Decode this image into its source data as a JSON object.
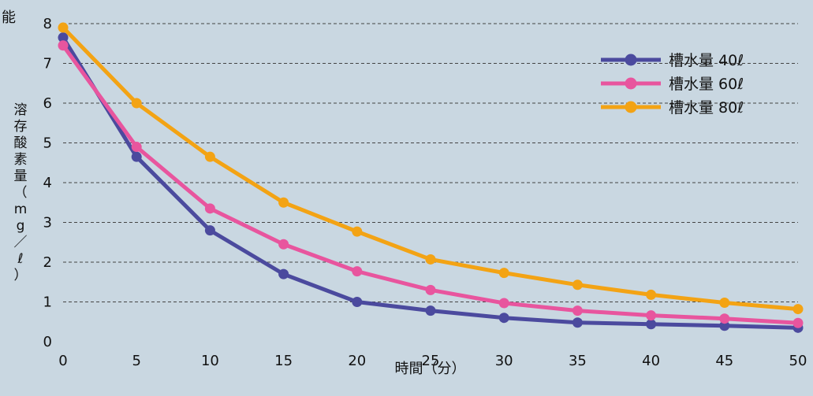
{
  "corner_text": "能",
  "chart_data": {
    "type": "line",
    "title": "",
    "xlabel": "時間（分）",
    "ylabel": "溶存酸素量（mg／ℓ）",
    "x": [
      0,
      5,
      10,
      15,
      20,
      25,
      30,
      35,
      40,
      45,
      50
    ],
    "xlim": [
      0,
      50
    ],
    "ylim": [
      0,
      8
    ],
    "yticks": [
      0,
      1,
      2,
      3,
      4,
      5,
      6,
      7,
      8
    ],
    "grid": "horizontal-dashed",
    "legend_position": "top-right",
    "series": [
      {
        "name": "槽水量 40ℓ",
        "color": "#4b4a9e",
        "values": [
          7.65,
          4.65,
          2.8,
          1.7,
          1.0,
          0.78,
          0.6,
          0.48,
          0.44,
          0.4,
          0.35
        ]
      },
      {
        "name": "槽水量 60ℓ",
        "color": "#e8559e",
        "values": [
          7.45,
          4.9,
          3.35,
          2.45,
          1.77,
          1.3,
          0.97,
          0.78,
          0.66,
          0.58,
          0.47
        ]
      },
      {
        "name": "槽水量 80ℓ",
        "color": "#f3a314",
        "values": [
          7.9,
          6.0,
          4.65,
          3.5,
          2.77,
          2.07,
          1.73,
          1.43,
          1.18,
          0.98,
          0.82
        ]
      }
    ]
  }
}
